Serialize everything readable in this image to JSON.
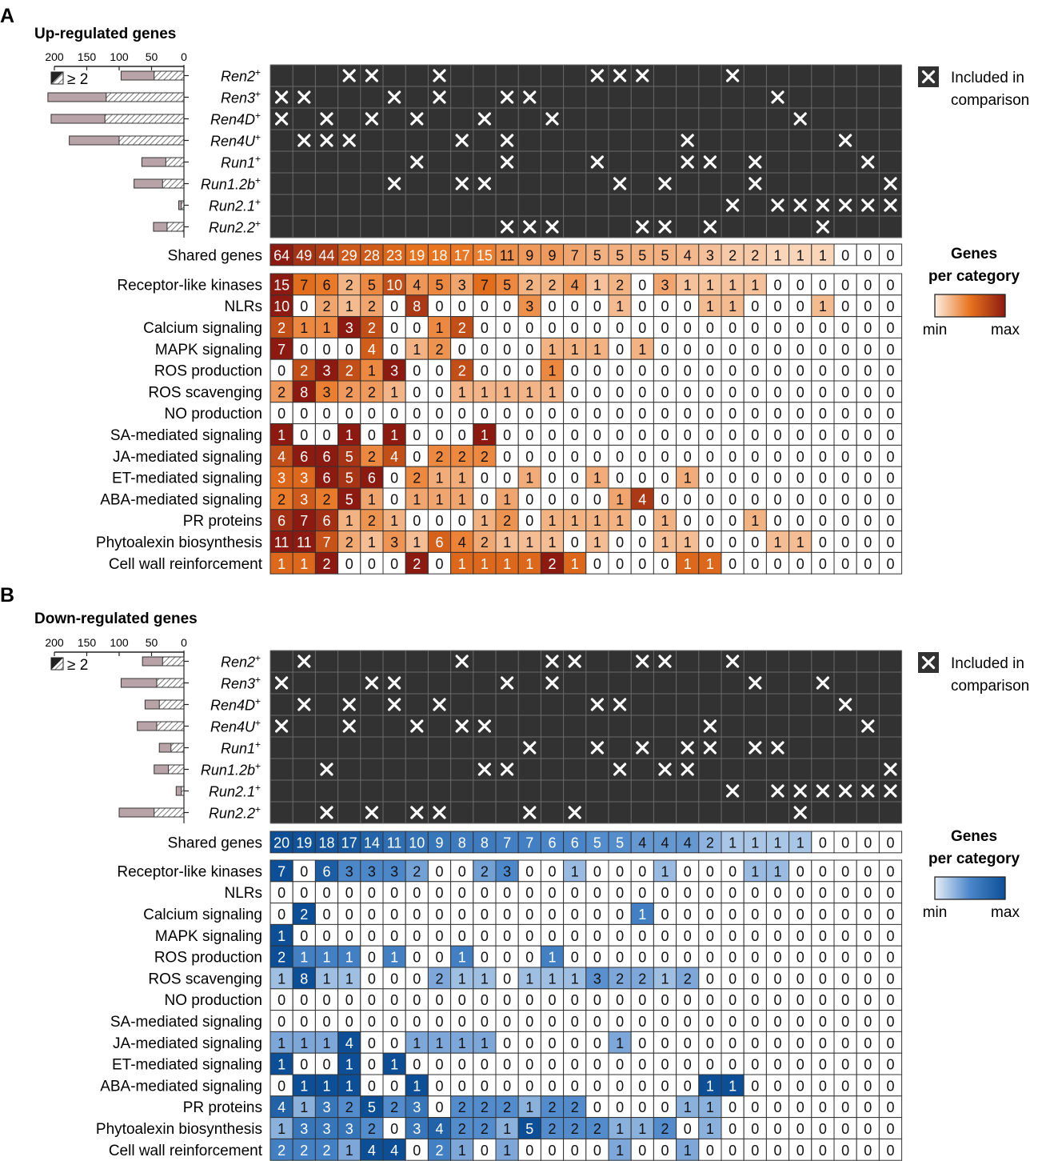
{
  "chart_data": [
    {
      "panel": "A",
      "type": "heatmap",
      "title": "Up-regulated genes",
      "bar_axis_ticks": [
        "200",
        "150",
        "100",
        "50",
        "0"
      ],
      "bar_legend": "≥ 2",
      "genotypes": [
        "Ren2",
        "Ren3",
        "Ren4D",
        "Ren4U",
        "Run1",
        "Run1.2b",
        "Run2.1",
        "Run2.2"
      ],
      "bar_totals": [
        97,
        210,
        205,
        177,
        65,
        77,
        8,
        47
      ],
      "bar_ge2": [
        46,
        120,
        122,
        100,
        28,
        33,
        4,
        26
      ],
      "included_columns": [
        [
          4,
          5,
          8,
          15,
          16,
          17,
          21
        ],
        [
          1,
          2,
          6,
          8,
          11,
          12,
          23
        ],
        [
          1,
          3,
          5,
          7,
          10,
          13,
          24
        ],
        [
          2,
          3,
          4,
          9,
          11,
          19,
          26
        ],
        [
          7,
          11,
          15,
          19,
          20,
          22,
          27
        ],
        [
          6,
          9,
          10,
          16,
          18,
          22,
          28
        ],
        [
          21,
          23,
          24,
          25,
          26,
          27,
          28
        ],
        [
          11,
          12,
          13,
          17,
          18,
          20,
          25
        ]
      ],
      "inclusion_legend": [
        "Included in",
        "comparison"
      ],
      "shared_label": "Shared genes",
      "shared_genes": [
        64,
        49,
        44,
        29,
        28,
        23,
        19,
        18,
        17,
        15,
        11,
        9,
        9,
        7,
        5,
        5,
        5,
        5,
        4,
        3,
        2,
        2,
        1,
        1,
        1,
        0,
        0,
        0
      ],
      "category_legend": {
        "title_line1": "Genes",
        "title_line2": "per category",
        "min_label": "min",
        "max_label": "max"
      },
      "categories": [
        "Receptor-like kinases",
        "NLRs",
        "Calcium signaling",
        "MAPK signaling",
        "ROS production",
        "ROS scavenging",
        "NO production",
        "SA-mediated signaling",
        "JA-mediated signaling",
        "ET-mediated signaling",
        "ABA-mediated signaling",
        "PR proteins",
        "Phytoalexin biosynthesis",
        "Cell wall reinforcement"
      ],
      "values": [
        [
          15,
          7,
          6,
          2,
          5,
          10,
          4,
          5,
          3,
          7,
          5,
          2,
          2,
          4,
          1,
          2,
          0,
          3,
          1,
          1,
          1,
          1,
          0,
          0,
          0,
          0,
          0,
          0
        ],
        [
          10,
          0,
          2,
          1,
          2,
          0,
          8,
          0,
          0,
          0,
          0,
          3,
          0,
          0,
          0,
          1,
          0,
          0,
          0,
          1,
          1,
          0,
          0,
          0,
          1,
          0,
          0,
          0
        ],
        [
          2,
          1,
          1,
          3,
          2,
          0,
          0,
          1,
          2,
          0,
          0,
          0,
          0,
          0,
          0,
          0,
          0,
          0,
          0,
          0,
          0,
          0,
          0,
          0,
          0,
          0,
          0,
          0
        ],
        [
          7,
          0,
          0,
          0,
          4,
          0,
          1,
          2,
          0,
          0,
          0,
          0,
          1,
          1,
          1,
          0,
          1,
          0,
          0,
          0,
          0,
          0,
          0,
          0,
          0,
          0,
          0,
          0
        ],
        [
          0,
          2,
          3,
          2,
          1,
          3,
          0,
          0,
          2,
          0,
          0,
          0,
          1,
          0,
          0,
          0,
          0,
          0,
          0,
          0,
          0,
          0,
          0,
          0,
          0,
          0,
          0,
          0
        ],
        [
          2,
          8,
          3,
          2,
          2,
          1,
          0,
          0,
          1,
          1,
          1,
          1,
          1,
          0,
          0,
          0,
          0,
          0,
          0,
          0,
          0,
          0,
          0,
          0,
          0,
          0,
          0,
          0
        ],
        [
          0,
          0,
          0,
          0,
          0,
          0,
          0,
          0,
          0,
          0,
          0,
          0,
          0,
          0,
          0,
          0,
          0,
          0,
          0,
          0,
          0,
          0,
          0,
          0,
          0,
          0,
          0,
          0
        ],
        [
          1,
          0,
          0,
          1,
          0,
          1,
          0,
          0,
          0,
          1,
          0,
          0,
          0,
          0,
          0,
          0,
          0,
          0,
          0,
          0,
          0,
          0,
          0,
          0,
          0,
          0,
          0,
          0
        ],
        [
          4,
          6,
          6,
          5,
          2,
          4,
          0,
          2,
          2,
          2,
          0,
          0,
          0,
          0,
          0,
          0,
          0,
          0,
          0,
          0,
          0,
          0,
          0,
          0,
          0,
          0,
          0,
          0
        ],
        [
          3,
          3,
          6,
          5,
          6,
          0,
          2,
          1,
          1,
          0,
          0,
          1,
          0,
          0,
          1,
          0,
          0,
          0,
          1,
          0,
          0,
          0,
          0,
          0,
          0,
          0,
          0,
          0
        ],
        [
          2,
          3,
          2,
          5,
          1,
          0,
          1,
          1,
          1,
          0,
          1,
          0,
          0,
          0,
          0,
          1,
          4,
          0,
          0,
          0,
          0,
          0,
          0,
          0,
          0,
          0,
          0,
          0
        ],
        [
          6,
          7,
          6,
          1,
          2,
          1,
          0,
          0,
          0,
          1,
          2,
          0,
          1,
          1,
          1,
          1,
          0,
          1,
          0,
          0,
          0,
          1,
          0,
          0,
          0,
          0,
          0,
          0
        ],
        [
          11,
          11,
          7,
          2,
          1,
          3,
          1,
          6,
          4,
          2,
          1,
          1,
          1,
          0,
          1,
          0,
          0,
          1,
          1,
          0,
          0,
          0,
          1,
          1,
          0,
          0,
          0,
          0
        ],
        [
          1,
          1,
          2,
          0,
          0,
          0,
          2,
          0,
          1,
          1,
          1,
          1,
          2,
          1,
          0,
          0,
          0,
          0,
          1,
          1,
          0,
          0,
          0,
          0,
          0,
          0,
          0,
          0
        ]
      ],
      "colors": {
        "low": "#fdeee1",
        "mid": "#e8731e",
        "high": "#8c1a10"
      }
    },
    {
      "panel": "B",
      "type": "heatmap",
      "title": "Down-regulated genes",
      "bar_axis_ticks": [
        "200",
        "150",
        "100",
        "50",
        "0"
      ],
      "bar_legend": "≥ 2",
      "genotypes": [
        "Ren2",
        "Ren3",
        "Ren4D",
        "Ren4U",
        "Run1",
        "Run1.2b",
        "Run2.1",
        "Run2.2"
      ],
      "bar_totals": [
        64,
        97,
        60,
        72,
        38,
        46,
        12,
        100
      ],
      "bar_ge2": [
        33,
        42,
        38,
        42,
        20,
        24,
        4,
        46
      ],
      "included_columns": [
        [
          2,
          9,
          13,
          14,
          17,
          18,
          21
        ],
        [
          1,
          5,
          6,
          11,
          13,
          22,
          25
        ],
        [
          2,
          4,
          6,
          8,
          15,
          16,
          26
        ],
        [
          1,
          4,
          7,
          9,
          10,
          20,
          27
        ],
        [
          12,
          15,
          17,
          19,
          20,
          22,
          23
        ],
        [
          3,
          10,
          11,
          16,
          18,
          19,
          28
        ],
        [
          21,
          23,
          24,
          25,
          26,
          27,
          28
        ],
        [
          3,
          5,
          7,
          8,
          12,
          14,
          24
        ]
      ],
      "inclusion_legend": [
        "Included in",
        "comparison"
      ],
      "shared_label": "Shared genes",
      "shared_genes": [
        20,
        19,
        18,
        17,
        14,
        11,
        10,
        9,
        8,
        8,
        7,
        7,
        6,
        6,
        5,
        5,
        4,
        4,
        4,
        2,
        1,
        1,
        1,
        1,
        0,
        0,
        0,
        0
      ],
      "category_legend": {
        "title_line1": "Genes",
        "title_line2": "per category",
        "min_label": "min",
        "max_label": "max"
      },
      "categories": [
        "Receptor-like kinases",
        "NLRs",
        "Calcium signaling",
        "MAPK signaling",
        "ROS production",
        "ROS scavenging",
        "NO production",
        "SA-mediated signaling",
        "JA-mediated signaling",
        "ET-mediated signaling",
        "ABA-mediated signaling",
        "PR proteins",
        "Phytoalexin biosynthesis",
        "Cell wall reinforcement"
      ],
      "values": [
        [
          7,
          0,
          6,
          3,
          3,
          3,
          2,
          0,
          0,
          2,
          3,
          0,
          0,
          1,
          0,
          0,
          0,
          1,
          0,
          0,
          0,
          1,
          1,
          0,
          0,
          0,
          0,
          0
        ],
        [
          0,
          0,
          0,
          0,
          0,
          0,
          0,
          0,
          0,
          0,
          0,
          0,
          0,
          0,
          0,
          0,
          0,
          0,
          0,
          0,
          0,
          0,
          0,
          0,
          0,
          0,
          0,
          0
        ],
        [
          0,
          2,
          0,
          0,
          0,
          0,
          0,
          0,
          0,
          0,
          0,
          0,
          0,
          0,
          0,
          0,
          1,
          0,
          0,
          0,
          0,
          0,
          0,
          0,
          0,
          0,
          0,
          0
        ],
        [
          1,
          0,
          0,
          0,
          0,
          0,
          0,
          0,
          0,
          0,
          0,
          0,
          0,
          0,
          0,
          0,
          0,
          0,
          0,
          0,
          0,
          0,
          0,
          0,
          0,
          0,
          0,
          0
        ],
        [
          2,
          1,
          1,
          1,
          0,
          1,
          0,
          0,
          1,
          0,
          0,
          0,
          1,
          0,
          0,
          0,
          0,
          0,
          0,
          0,
          0,
          0,
          0,
          0,
          0,
          0,
          0,
          0
        ],
        [
          1,
          8,
          1,
          1,
          0,
          0,
          0,
          2,
          1,
          1,
          0,
          1,
          1,
          1,
          3,
          2,
          2,
          1,
          2,
          0,
          0,
          0,
          0,
          0,
          0,
          0,
          0,
          0
        ],
        [
          0,
          0,
          0,
          0,
          0,
          0,
          0,
          0,
          0,
          0,
          0,
          0,
          0,
          0,
          0,
          0,
          0,
          0,
          0,
          0,
          0,
          0,
          0,
          0,
          0,
          0,
          0,
          0
        ],
        [
          0,
          0,
          0,
          0,
          0,
          0,
          0,
          0,
          0,
          0,
          0,
          0,
          0,
          0,
          0,
          0,
          0,
          0,
          0,
          0,
          0,
          0,
          0,
          0,
          0,
          0,
          0,
          0
        ],
        [
          1,
          1,
          1,
          4,
          0,
          0,
          1,
          1,
          1,
          1,
          0,
          0,
          0,
          0,
          0,
          1,
          0,
          0,
          0,
          0,
          0,
          0,
          0,
          0,
          0,
          0,
          0,
          0
        ],
        [
          1,
          0,
          0,
          1,
          0,
          1,
          0,
          0,
          0,
          0,
          0,
          0,
          0,
          0,
          0,
          0,
          0,
          0,
          0,
          0,
          0,
          0,
          0,
          0,
          0,
          0,
          0,
          0
        ],
        [
          0,
          1,
          1,
          1,
          0,
          0,
          1,
          0,
          0,
          0,
          0,
          0,
          0,
          0,
          0,
          0,
          0,
          0,
          0,
          1,
          1,
          0,
          0,
          0,
          0,
          0,
          0,
          0
        ],
        [
          4,
          1,
          3,
          2,
          5,
          2,
          3,
          0,
          2,
          2,
          2,
          1,
          2,
          2,
          0,
          0,
          0,
          0,
          1,
          1,
          0,
          0,
          0,
          0,
          0,
          0,
          0,
          0
        ],
        [
          1,
          3,
          3,
          3,
          2,
          0,
          3,
          4,
          2,
          2,
          1,
          5,
          2,
          2,
          2,
          1,
          1,
          2,
          0,
          1,
          0,
          0,
          0,
          0,
          0,
          0,
          0,
          0
        ],
        [
          2,
          2,
          2,
          1,
          4,
          4,
          0,
          2,
          1,
          0,
          1,
          0,
          0,
          0,
          0,
          1,
          0,
          0,
          1,
          0,
          0,
          0,
          0,
          0,
          0,
          0,
          0,
          0
        ]
      ],
      "colors": {
        "low": "#e6eef8",
        "mid": "#4a86c9",
        "high": "#0d4f96"
      }
    }
  ]
}
